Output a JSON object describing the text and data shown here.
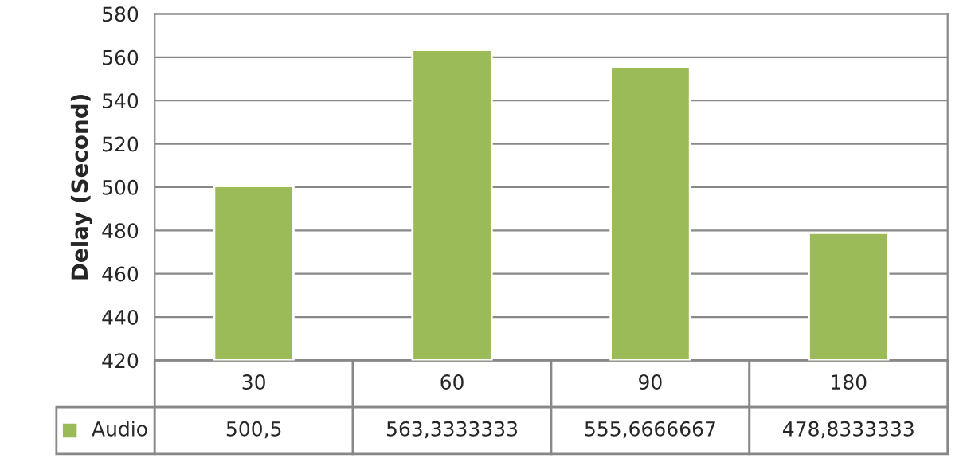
{
  "chart_data": {
    "type": "bar",
    "ylabel": "Delay (Second)",
    "categories": [
      "30",
      "60",
      "90",
      "180"
    ],
    "series": [
      {
        "name": "Audio",
        "color": "#9bbb59",
        "values": [
          500.5,
          563.3333333,
          555.6666667,
          478.8333333
        ],
        "value_labels": [
          "500,5",
          "563,3333333",
          "555,6666667",
          "478,8333333"
        ]
      }
    ],
    "ylim": [
      420,
      580
    ],
    "yticks": [
      420,
      440,
      460,
      480,
      500,
      520,
      540,
      560,
      580
    ],
    "grid": "y",
    "data_labels": true
  }
}
